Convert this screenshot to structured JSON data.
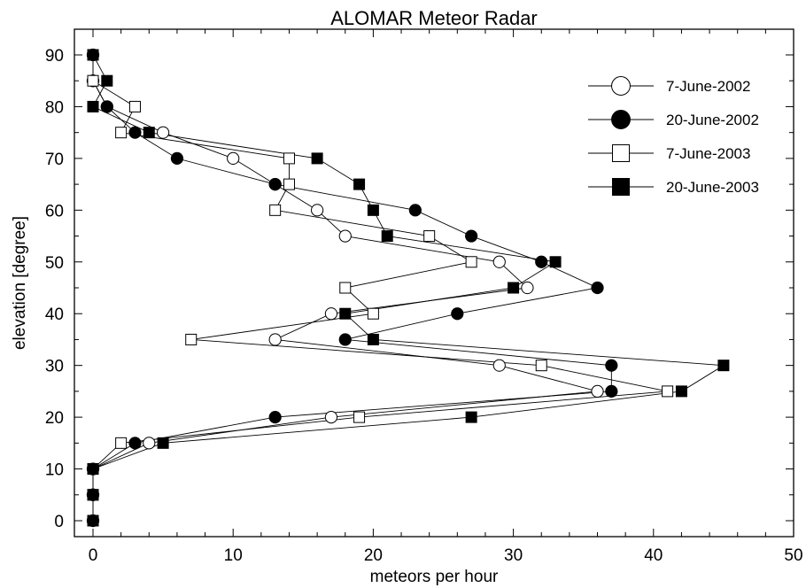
{
  "chart_data": {
    "type": "line",
    "title": "ALOMAR Meteor Radar",
    "xlabel": "meteors per hour",
    "ylabel": "elevation [degree]",
    "xlim": [
      0,
      50
    ],
    "ylim": [
      0,
      90
    ],
    "x_ticks": [
      "0",
      "10",
      "20",
      "30",
      "40",
      "50"
    ],
    "y_ticks": [
      "0",
      "10",
      "20",
      "30",
      "40",
      "50",
      "60",
      "70",
      "80",
      "90"
    ],
    "grid": false,
    "legend_position": "top-right",
    "series": [
      {
        "name": "7-June-2002",
        "marker": "open-circle",
        "color": "#000000",
        "points": [
          [
            0,
            0
          ],
          [
            0,
            5
          ],
          [
            0,
            10
          ],
          [
            4,
            15
          ],
          [
            17,
            20
          ],
          [
            36,
            25
          ],
          [
            29,
            30
          ],
          [
            13,
            35
          ],
          [
            17,
            40
          ],
          [
            31,
            45
          ],
          [
            29,
            50
          ],
          [
            18,
            55
          ],
          [
            16,
            60
          ],
          [
            13,
            65
          ],
          [
            10,
            70
          ],
          [
            5,
            75
          ],
          [
            1,
            80
          ],
          [
            0,
            85
          ],
          [
            0,
            90
          ]
        ]
      },
      {
        "name": "20-June-2002",
        "marker": "filled-circle",
        "color": "#000000",
        "points": [
          [
            0,
            0
          ],
          [
            0,
            5
          ],
          [
            0,
            10
          ],
          [
            3,
            15
          ],
          [
            13,
            20
          ],
          [
            37,
            25
          ],
          [
            37,
            30
          ],
          [
            18,
            35
          ],
          [
            26,
            40
          ],
          [
            36,
            45
          ],
          [
            32,
            50
          ],
          [
            27,
            55
          ],
          [
            23,
            60
          ],
          [
            13,
            65
          ],
          [
            6,
            70
          ],
          [
            3,
            75
          ],
          [
            1,
            80
          ],
          [
            0,
            85
          ],
          [
            0,
            90
          ]
        ]
      },
      {
        "name": "7-June-2003",
        "marker": "open-square",
        "color": "#000000",
        "points": [
          [
            0,
            0
          ],
          [
            0,
            5
          ],
          [
            0,
            10
          ],
          [
            2,
            15
          ],
          [
            19,
            20
          ],
          [
            41,
            25
          ],
          [
            32,
            30
          ],
          [
            7,
            35
          ],
          [
            20,
            40
          ],
          [
            18,
            45
          ],
          [
            27,
            50
          ],
          [
            24,
            55
          ],
          [
            13,
            60
          ],
          [
            14,
            65
          ],
          [
            14,
            70
          ],
          [
            2,
            75
          ],
          [
            3,
            80
          ],
          [
            0,
            85
          ],
          [
            0,
            90
          ]
        ]
      },
      {
        "name": "20-June-2003",
        "marker": "filled-square",
        "color": "#000000",
        "points": [
          [
            0,
            0
          ],
          [
            0,
            5
          ],
          [
            0,
            10
          ],
          [
            5,
            15
          ],
          [
            27,
            20
          ],
          [
            42,
            25
          ],
          [
            45,
            30
          ],
          [
            20,
            35
          ],
          [
            18,
            40
          ],
          [
            30,
            45
          ],
          [
            33,
            50
          ],
          [
            21,
            55
          ],
          [
            20,
            60
          ],
          [
            19,
            65
          ],
          [
            16,
            70
          ],
          [
            4,
            75
          ],
          [
            0,
            80
          ],
          [
            1,
            85
          ],
          [
            0,
            90
          ]
        ]
      }
    ]
  }
}
